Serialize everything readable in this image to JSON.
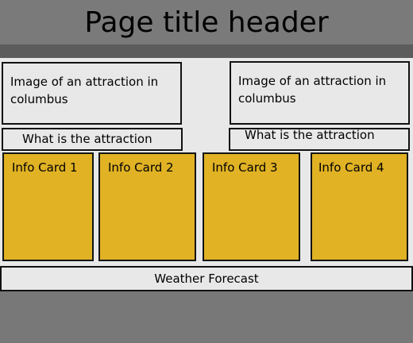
{
  "header": {
    "title": "Page title header"
  },
  "attractions": [
    {
      "image_text": "Image of an attraction in columbus",
      "caption": "What is the attraction"
    },
    {
      "image_text": "Image of an attraction in columbus",
      "caption": "What is the attraction"
    }
  ],
  "cards": [
    {
      "label": "Info Card 1"
    },
    {
      "label": "Info Card 2"
    },
    {
      "label": "Info Card 3"
    },
    {
      "label": "Info Card 4"
    }
  ],
  "weather": {
    "label": "Weather Forecast"
  },
  "colors": {
    "card": "#e0b224",
    "header": "#7a7a7a",
    "header_bar": "#5c5c5c",
    "panel": "#e8e8e8"
  }
}
